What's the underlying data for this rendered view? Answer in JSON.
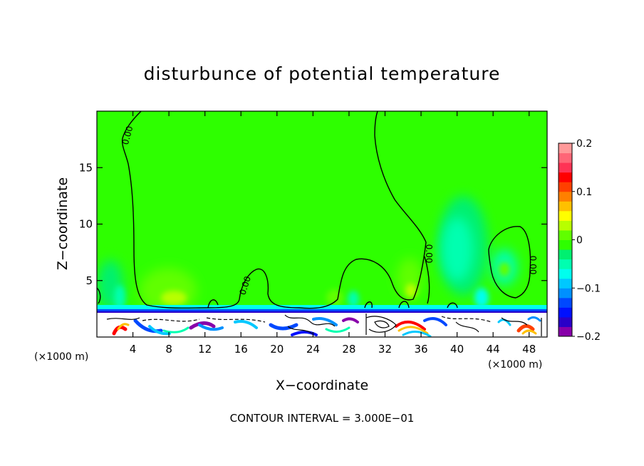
{
  "chart_data": {
    "type": "heatmap",
    "title": "disturbunce of potential temperature",
    "xlabel": "X−coordinate",
    "ylabel": "Z−coordinate",
    "x_unit_left": "(×1000 m)",
    "x_unit_right": "(×1000 m)",
    "footer": "CONTOUR INTERVAL = 3.000E−01",
    "xlim": [
      0,
      50
    ],
    "ylim": [
      0,
      20
    ],
    "xticks": [
      4,
      8,
      12,
      16,
      20,
      24,
      28,
      32,
      36,
      40,
      44,
      48
    ],
    "yticks": [
      5,
      10,
      15
    ],
    "contour_label": "0.00",
    "colorbar": {
      "min": -0.2,
      "max": 0.2,
      "tick_values": [
        0.2,
        0.1,
        0,
        -0.1,
        -0.2
      ],
      "tick_labels": [
        "0.2",
        "0.1",
        "0",
        "−0.1",
        "−0.2"
      ],
      "colors": [
        "#8800aa",
        "#2a00c8",
        "#0010ff",
        "#0048ff",
        "#0090ff",
        "#00c8ff",
        "#00ffee",
        "#00ffb0",
        "#00f070",
        "#2eff00",
        "#60ff00",
        "#b8ff00",
        "#ffff00",
        "#ffc000",
        "#ff8000",
        "#ff4000",
        "#ff0000",
        "#ff3355",
        "#ff6677",
        "#ff9999"
      ]
    },
    "background_value": 0.0
  }
}
